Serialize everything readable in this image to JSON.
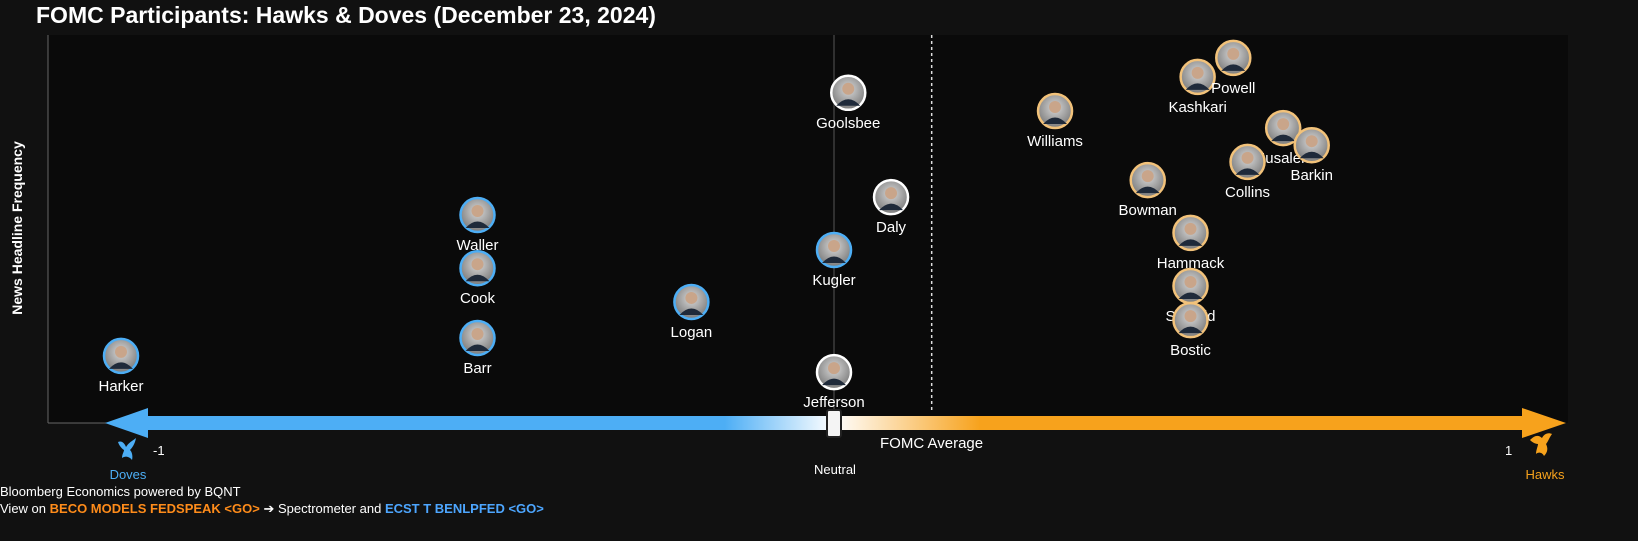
{
  "title": "FOMC Participants: Hawks & Doves (December 23, 2024)",
  "footer": {
    "line1": "Bloomberg Economics powered by BQNT",
    "view_on": "View on",
    "cmd1": "BECO MODELS FEDSPEAK <GO>",
    "arrow": "➔ Spectrometer and",
    "cmd2": "ECST T BENLPFED <GO>"
  },
  "colors": {
    "dove": "#4daef5",
    "hawk": "#f5a623",
    "neutral": "#ffffff",
    "hawk_ring": "#f2c27a"
  },
  "chart_data": {
    "type": "scatter",
    "title": "FOMC Participants: Hawks & Doves (December 23, 2024)",
    "xlabel": "",
    "ylabel": "News Headline Frequency",
    "xlim": [
      -1,
      1
    ],
    "ylim": [
      0,
      100
    ],
    "x_tick_labels": {
      "min": "-1",
      "max": "1"
    },
    "axis_labels": {
      "left": "Doves",
      "right": "Hawks",
      "center": "Neutral",
      "average": "FOMC Average"
    },
    "fomc_average": 0.137,
    "points": [
      {
        "name": "Harker",
        "x": -1.0,
        "y": 17.3,
        "stance": "dove"
      },
      {
        "name": "Waller",
        "x": -0.5,
        "y": 53.6,
        "stance": "dove"
      },
      {
        "name": "Cook",
        "x": -0.5,
        "y": 39.9,
        "stance": "dove"
      },
      {
        "name": "Barr",
        "x": -0.5,
        "y": 21.9,
        "stance": "dove"
      },
      {
        "name": "Logan",
        "x": -0.2,
        "y": 31.2,
        "stance": "dove"
      },
      {
        "name": "Goolsbee",
        "x": 0.02,
        "y": 85.1,
        "stance": "neutral"
      },
      {
        "name": "Kugler",
        "x": 0.0,
        "y": 44.6,
        "stance": "dove"
      },
      {
        "name": "Jefferson",
        "x": 0.0,
        "y": 13.1,
        "stance": "neutral"
      },
      {
        "name": "Daly",
        "x": 0.08,
        "y": 58.2,
        "stance": "neutral"
      },
      {
        "name": "Williams",
        "x": 0.31,
        "y": 80.4,
        "stance": "hawk"
      },
      {
        "name": "Kashkari",
        "x": 0.51,
        "y": 89.2,
        "stance": "hawk"
      },
      {
        "name": "Powell",
        "x": 0.56,
        "y": 94.1,
        "stance": "hawk"
      },
      {
        "name": "Musalem",
        "x": 0.63,
        "y": 76.0,
        "stance": "hawk"
      },
      {
        "name": "Collins",
        "x": 0.58,
        "y": 67.3,
        "stance": "hawk"
      },
      {
        "name": "Barkin",
        "x": 0.67,
        "y": 71.6,
        "stance": "hawk"
      },
      {
        "name": "Bowman",
        "x": 0.44,
        "y": 62.6,
        "stance": "hawk"
      },
      {
        "name": "Hammack",
        "x": 0.5,
        "y": 49.0,
        "stance": "hawk"
      },
      {
        "name": "Schmid",
        "x": 0.5,
        "y": 35.3,
        "stance": "hawk"
      },
      {
        "name": "Bostic",
        "x": 0.5,
        "y": 26.5,
        "stance": "hawk"
      }
    ]
  }
}
